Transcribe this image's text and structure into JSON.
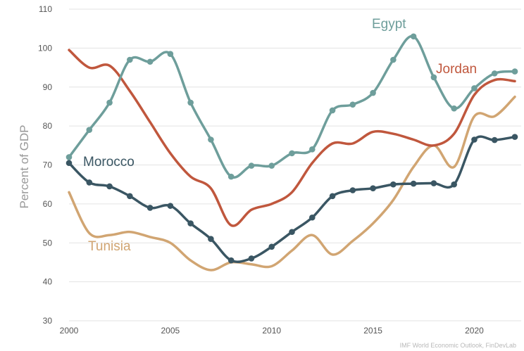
{
  "chart_data": {
    "type": "line",
    "title": "",
    "xlabel": "",
    "ylabel": "Percent of GDP",
    "xlim": [
      2000,
      2022
    ],
    "ylim": [
      30,
      110
    ],
    "x_ticks": [
      2000,
      2005,
      2010,
      2015,
      2020
    ],
    "y_ticks": [
      30,
      40,
      50,
      60,
      70,
      80,
      90,
      100,
      110
    ],
    "grid": "horizontal",
    "legend": "inline labels",
    "source_note": "IMF World Economic Outlook, FinDevLab",
    "x": [
      2000,
      2001,
      2002,
      2003,
      2004,
      2005,
      2006,
      2007,
      2008,
      2009,
      2010,
      2011,
      2012,
      2013,
      2014,
      2015,
      2016,
      2017,
      2018,
      2019,
      2020,
      2021,
      2022
    ],
    "series": [
      {
        "name": "Egypt",
        "color": "#6e9e9b",
        "markers": true,
        "values": [
          72,
          79,
          86,
          97,
          96.5,
          98.5,
          86,
          76.5,
          67,
          69.8,
          69.8,
          73,
          74,
          84,
          85.5,
          88.5,
          97,
          103,
          92.5,
          84.5,
          89.7,
          93.5,
          94
        ]
      },
      {
        "name": "Jordan",
        "color": "#c0573d",
        "markers": false,
        "values": [
          99.5,
          95,
          95.5,
          89,
          81,
          73,
          67,
          64,
          54.5,
          58.5,
          60,
          63,
          70.5,
          75.5,
          75.5,
          78.5,
          78,
          76.5,
          75,
          78,
          88,
          91.8,
          91.5
        ]
      },
      {
        "name": "Morocco",
        "color": "#3a5663",
        "markers": true,
        "values": [
          70.5,
          65.5,
          64.5,
          62,
          59,
          59.5,
          55,
          51,
          45.5,
          46,
          49,
          52.8,
          56.5,
          62,
          63.5,
          64,
          65,
          65.2,
          65.3,
          65,
          76.5,
          76.4,
          77.2
        ]
      },
      {
        "name": "Tunisia",
        "color": "#d1a572",
        "markers": false,
        "values": [
          63,
          52.5,
          52,
          52.8,
          51.5,
          50,
          45.5,
          43,
          45,
          44.5,
          44,
          48,
          52,
          47,
          50.5,
          55,
          61,
          69.5,
          75,
          69.5,
          82.5,
          82.5,
          87.5
        ]
      }
    ],
    "labels": {
      "Egypt": "Egypt",
      "Jordan": "Jordan",
      "Morocco": "Morocco",
      "Tunisia": "Tunisia"
    }
  }
}
